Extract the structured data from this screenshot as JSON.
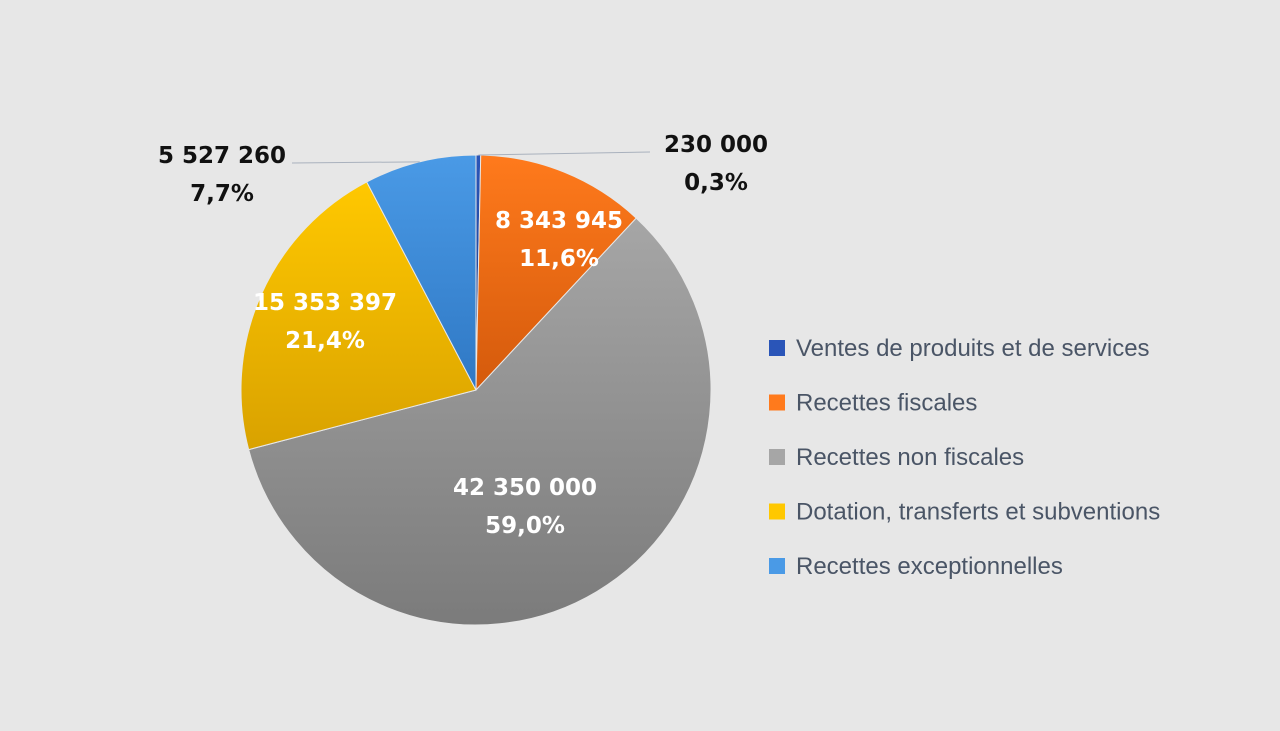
{
  "chart_data": {
    "type": "pie",
    "title": "",
    "series": [
      {
        "name": "",
        "slices": [
          {
            "label": "Ventes de produits et de services",
            "value": 230000,
            "value_text": "230 000",
            "percent_text": "0,3%",
            "color": "#2a55b8",
            "color_dark": "#1f3f8a",
            "label_style": "outside-dark"
          },
          {
            "label": "Recettes fiscales",
            "value": 8343945,
            "value_text": "8 343 945",
            "percent_text": "11,6%",
            "color": "#ff7a1c",
            "color_dark": "#d45a0c",
            "label_style": "inside-light"
          },
          {
            "label": "Recettes non fiscales",
            "value": 42350000,
            "value_text": "42 350 000",
            "percent_text": "59,0%",
            "color": "#a6a6a6",
            "color_dark": "#7b7b7b",
            "label_style": "inside-light"
          },
          {
            "label": "Dotation, transferts et subventions",
            "value": 15353397,
            "value_text": "15 353 397",
            "percent_text": "21,4%",
            "color": "#ffc800",
            "color_dark": "#d9a200",
            "label_style": "inside-light"
          },
          {
            "label": "Recettes exceptionnelles",
            "value": 5527260,
            "value_text": "5 527 260",
            "percent_text": "7,7%",
            "color": "#4a9ae6",
            "color_dark": "#2f78c4",
            "label_style": "outside-dark"
          }
        ]
      }
    ],
    "legend_position": "right",
    "start_angle": "top",
    "direction": "clockwise"
  }
}
